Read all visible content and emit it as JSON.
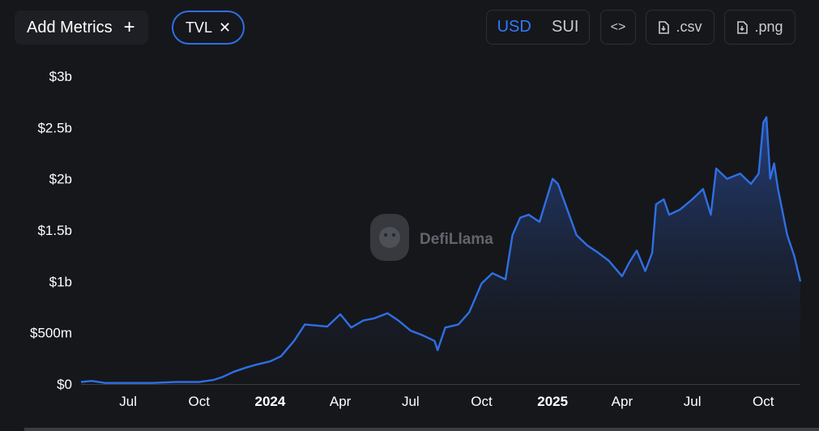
{
  "toolbar": {
    "add_metrics_label": "Add Metrics",
    "add_icon": "plus-icon",
    "metric_chip_label": "TVL",
    "chip_close_icon": "close-icon",
    "currency_options": [
      "USD",
      "SUI"
    ],
    "currency_selected": "USD",
    "embed_label": "<>",
    "csv_label": ".csv",
    "png_label": ".png",
    "file_icon": "file-download-icon"
  },
  "watermark": {
    "text": "DefiLlama",
    "icon": "llama-logo-icon"
  },
  "colors": {
    "background": "#16171b",
    "line": "#2f6fe4",
    "accent": "#2f7bff",
    "area_top": "#2a4fa0",
    "area_bottom": "#16171b"
  },
  "chart_data": {
    "type": "area",
    "title": "",
    "xlabel": "",
    "ylabel": "",
    "y_tick_labels": [
      "$0",
      "$500m",
      "$1b",
      "$1.5b",
      "$2b",
      "$2.5b",
      "$3b"
    ],
    "y_ticks": [
      0,
      0.5,
      1,
      1.5,
      2,
      2.5,
      3
    ],
    "ylim": [
      0,
      3
    ],
    "y_unit": "billions USD",
    "xlim": [
      "2023-05-01",
      "2025-11-18"
    ],
    "x_ticks": [
      {
        "date": "2023-07-01",
        "label": "Jul",
        "bold": false
      },
      {
        "date": "2023-10-01",
        "label": "Oct",
        "bold": false
      },
      {
        "date": "2024-01-01",
        "label": "2024",
        "bold": true
      },
      {
        "date": "2024-04-01",
        "label": "Apr",
        "bold": false
      },
      {
        "date": "2024-07-01",
        "label": "Jul",
        "bold": false
      },
      {
        "date": "2024-10-01",
        "label": "Oct",
        "bold": false
      },
      {
        "date": "2025-01-01",
        "label": "2025",
        "bold": true
      },
      {
        "date": "2025-04-01",
        "label": "Apr",
        "bold": false
      },
      {
        "date": "2025-07-01",
        "label": "Jul",
        "bold": false
      },
      {
        "date": "2025-10-01",
        "label": "Oct",
        "bold": false
      }
    ],
    "grid": false,
    "legend": "none",
    "series": [
      {
        "x": [
          "2023-05-01",
          "2023-05-15",
          "2023-06-01",
          "2023-07-01",
          "2023-08-01",
          "2023-09-01",
          "2023-10-01",
          "2023-10-20",
          "2023-11-01",
          "2023-11-15",
          "2023-12-01",
          "2023-12-15",
          "2024-01-01",
          "2024-01-15",
          "2024-02-01",
          "2024-02-15",
          "2024-03-01",
          "2024-03-15",
          "2024-04-01",
          "2024-04-15",
          "2024-05-01",
          "2024-05-15",
          "2024-06-01",
          "2024-06-15",
          "2024-07-01",
          "2024-07-15",
          "2024-08-01",
          "2024-08-05",
          "2024-08-15",
          "2024-09-01",
          "2024-09-15",
          "2024-10-01",
          "2024-10-15",
          "2024-11-01",
          "2024-11-10",
          "2024-11-20",
          "2024-12-01",
          "2024-12-15",
          "2025-01-01",
          "2025-01-08",
          "2025-01-20",
          "2025-02-01",
          "2025-02-15",
          "2025-03-01",
          "2025-03-15",
          "2025-04-01",
          "2025-04-10",
          "2025-04-20",
          "2025-05-01",
          "2025-05-10",
          "2025-05-15",
          "2025-05-25",
          "2025-06-01",
          "2025-06-15",
          "2025-07-01",
          "2025-07-15",
          "2025-07-25",
          "2025-08-01",
          "2025-08-15",
          "2025-09-01",
          "2025-09-15",
          "2025-09-25",
          "2025-10-01",
          "2025-10-05",
          "2025-10-10",
          "2025-10-15",
          "2025-10-20",
          "2025-11-01",
          "2025-11-10",
          "2025-11-18"
        ],
        "y": [
          0.02,
          0.03,
          0.01,
          0.01,
          0.01,
          0.02,
          0.02,
          0.04,
          0.07,
          0.12,
          0.16,
          0.19,
          0.22,
          0.27,
          0.42,
          0.58,
          0.57,
          0.56,
          0.68,
          0.55,
          0.62,
          0.64,
          0.69,
          0.62,
          0.52,
          0.48,
          0.42,
          0.33,
          0.55,
          0.58,
          0.7,
          0.98,
          1.08,
          1.02,
          1.45,
          1.62,
          1.65,
          1.58,
          2.0,
          1.95,
          1.7,
          1.45,
          1.35,
          1.28,
          1.2,
          1.05,
          1.18,
          1.3,
          1.1,
          1.28,
          1.75,
          1.8,
          1.65,
          1.7,
          1.8,
          1.9,
          1.65,
          2.1,
          2.0,
          2.05,
          1.95,
          2.05,
          2.55,
          2.6,
          2.0,
          2.15,
          1.9,
          1.45,
          1.25,
          1.0
        ]
      }
    ]
  }
}
